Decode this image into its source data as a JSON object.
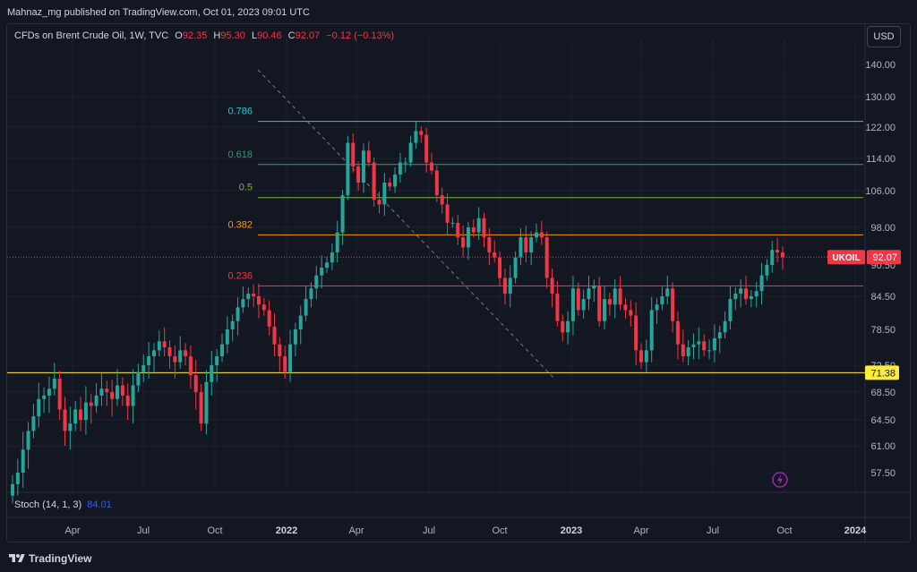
{
  "publisher": "Mahnaz_mg published on TradingView.com, Oct 01, 2023 09:01 UTC",
  "legend": {
    "symbol": "CFDs on Brent Crude Oil, 1W, TVC",
    "o_label": "O",
    "o": "92.35",
    "h_label": "H",
    "h": "95.30",
    "l_label": "L",
    "l": "90.46",
    "c_label": "C",
    "c": "92.07",
    "change": "−0.12 (−0.13%)"
  },
  "currency": "USD",
  "stoch": {
    "label": "Stoch (14, 1, 3)",
    "value": "84.01"
  },
  "brand": "TradingView",
  "colors": {
    "up": "#26a69a",
    "down": "#f23645",
    "bg": "#131722",
    "grid": "#1e222d",
    "text": "#b2b5be"
  },
  "chart_data": {
    "type": "candlestick",
    "timeframe": "1W",
    "y_ticks": [
      "140.00",
      "130.00",
      "122.00",
      "114.00",
      "106.00",
      "98.00",
      "90.50",
      "84.50",
      "78.50",
      "72.50",
      "68.50",
      "64.50",
      "61.00",
      "57.50"
    ],
    "y_tick_values": [
      140,
      130,
      122,
      114,
      106,
      98,
      90.5,
      84.5,
      78.5,
      72.5,
      68.5,
      64.5,
      61,
      57.5
    ],
    "x_ticks": [
      "Apr",
      "Jul",
      "Oct",
      "2022",
      "Apr",
      "Jul",
      "Oct",
      "2023",
      "Apr",
      "Jul",
      "Oct",
      "2024"
    ],
    "x_tick_bold": [
      false,
      false,
      false,
      true,
      false,
      false,
      false,
      true,
      false,
      false,
      false,
      true
    ],
    "fib_levels": [
      {
        "label": "0.786",
        "value": 123.5,
        "color": "#26c6da"
      },
      {
        "label": "0.618",
        "value": 112.5,
        "color": "#2e9e7a"
      },
      {
        "label": "0.5",
        "value": 104.5,
        "color": "#7cb342"
      },
      {
        "label": "0.382",
        "value": 96.5,
        "color": "#ff9800"
      },
      {
        "label": "0.236",
        "value": 86.5,
        "color": "#f23645"
      }
    ],
    "horizontal_line": {
      "label": "71.38",
      "value": 71.38,
      "color": "#ffeb3b"
    },
    "last_price": {
      "symbol": "UKOIL",
      "value": "92.07",
      "color": "#f23645"
    },
    "closes": [
      56.0,
      57.5,
      60.5,
      63.0,
      65.0,
      67.5,
      68.0,
      69.0,
      70.5,
      66.0,
      63.0,
      64.0,
      66.0,
      64.5,
      67.0,
      66.5,
      68.0,
      69.0,
      68.5,
      67.5,
      69.5,
      68.0,
      66.5,
      69.5,
      71.5,
      72.5,
      74.0,
      75.0,
      76.5,
      75.5,
      74.0,
      73.0,
      75.0,
      74.0,
      71.0,
      68.5,
      64.0,
      70.0,
      72.5,
      74.0,
      76.0,
      78.5,
      80.0,
      82.5,
      84.0,
      85.0,
      84.5,
      83.0,
      82.0,
      79.0,
      76.0,
      74.0,
      71.5,
      76.0,
      78.5,
      81.0,
      84.0,
      86.0,
      88.5,
      90.0,
      91.0,
      93.0,
      97.0,
      105.0,
      118.0,
      112.0,
      108.0,
      116.0,
      113.0,
      104.0,
      103.0,
      108.0,
      107.0,
      110.0,
      113.0,
      113.0,
      118.0,
      121.0,
      120.0,
      113.0,
      111.0,
      105.0,
      103.0,
      99.0,
      99.0,
      96.0,
      94.0,
      98.0,
      97.0,
      100.0,
      96.0,
      93.0,
      92.0,
      88.0,
      85.0,
      88.0,
      92.0,
      96.0,
      93.0,
      96.0,
      97.0,
      96.0,
      88.0,
      85.0,
      80.0,
      78.0,
      80.0,
      86.0,
      82.0,
      84.0,
      86.0,
      86.5,
      80.0,
      84.0,
      83.0,
      86.0,
      83.0,
      82.0,
      81.0,
      75.0,
      73.0,
      75.0,
      82.0,
      83.0,
      84.5,
      86.0,
      80.0,
      76.0,
      74.0,
      75.5,
      76.0,
      76.5,
      75.0,
      75.0,
      77.0,
      78.0,
      80.0,
      84.0,
      85.0,
      86.0,
      84.0,
      84.5,
      85.5,
      88.5,
      90.5,
      93.5,
      93.0,
      92.07
    ],
    "price_axis_range": [
      54.5,
      145.0
    ]
  }
}
